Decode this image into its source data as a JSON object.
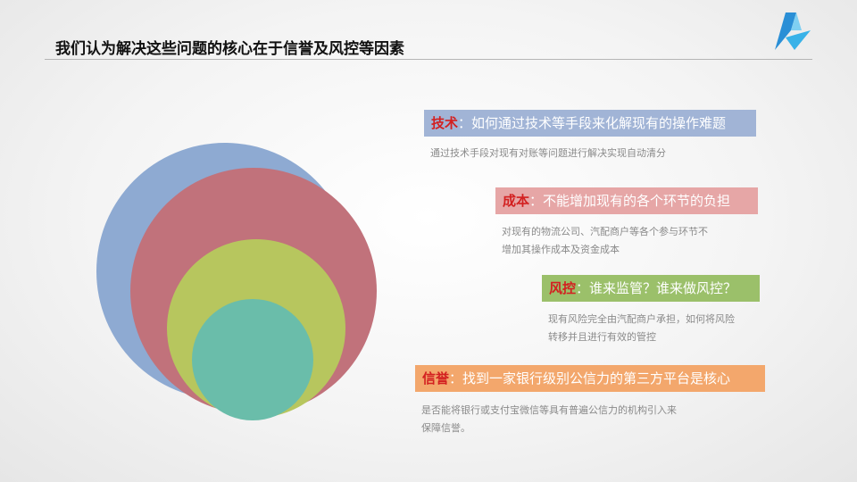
{
  "title": "我们认为解决这些问题的核心在于信誉及风控等因素",
  "colors": {
    "blue": "#8eaad2",
    "red": "#c1727b",
    "yellow": "#b7c65e",
    "teal": "#6abdaa",
    "label_blue_bg": "#a1b4d6",
    "label_red_bg": "#e6a6a6",
    "label_green_bg": "#9bc06a",
    "label_orange_bg": "#f3a76c",
    "key_red": "#d32020"
  },
  "items": [
    {
      "key": "技术",
      "colon": "：",
      "desc": "如何通过技术等手段来化解现有的操作难题",
      "sub": [
        "通过技术手段对现有对账等问题进行解决实现自动清分"
      ]
    },
    {
      "key": "成本",
      "colon": "：",
      "desc": "不能增加现有的各个环节的负担",
      "sub": [
        "对现有的物流公司、汽配商户等各个参与环节不",
        "增加其操作成本及资金成本"
      ]
    },
    {
      "key": "风控",
      "colon": "：",
      "desc": "谁来监管？谁来做风控？",
      "sub": [
        "现有风险完全由汽配商户承担，如何将风险",
        "转移并且进行有效的管控"
      ]
    },
    {
      "key": "信誉",
      "colon": "：",
      "desc": "找到一家银行级别公信力的第三方平台是核心",
      "sub": [
        "是否能将银行或支付宝微信等具有普遍公信力的机构引入来",
        "保障信誉。"
      ]
    }
  ]
}
